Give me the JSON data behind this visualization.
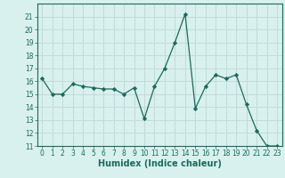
{
  "x": [
    0,
    1,
    2,
    3,
    4,
    5,
    6,
    7,
    8,
    9,
    10,
    11,
    12,
    13,
    14,
    15,
    16,
    17,
    18,
    19,
    20,
    21,
    22,
    23
  ],
  "y": [
    16.2,
    15.0,
    15.0,
    15.8,
    15.6,
    15.5,
    15.4,
    15.4,
    15.0,
    15.5,
    13.1,
    15.6,
    17.0,
    19.0,
    21.2,
    13.9,
    15.6,
    16.5,
    16.2,
    16.5,
    14.2,
    12.2,
    11.0,
    11.0
  ],
  "line_color": "#1a6b5a",
  "marker": "D",
  "marker_size": 2.2,
  "bg_color": "#d8f0ee",
  "grid_color": "#c0d8d4",
  "xlabel": "Humidex (Indice chaleur)",
  "ylim": [
    11,
    22
  ],
  "xlim": [
    -0.5,
    23.5
  ],
  "yticks": [
    11,
    12,
    13,
    14,
    15,
    16,
    17,
    18,
    19,
    20,
    21
  ],
  "xticks": [
    0,
    1,
    2,
    3,
    4,
    5,
    6,
    7,
    8,
    9,
    10,
    11,
    12,
    13,
    14,
    15,
    16,
    17,
    18,
    19,
    20,
    21,
    22,
    23
  ],
  "tick_color": "#1a6b5a",
  "label_fontsize": 7,
  "tick_fontsize": 5.5
}
